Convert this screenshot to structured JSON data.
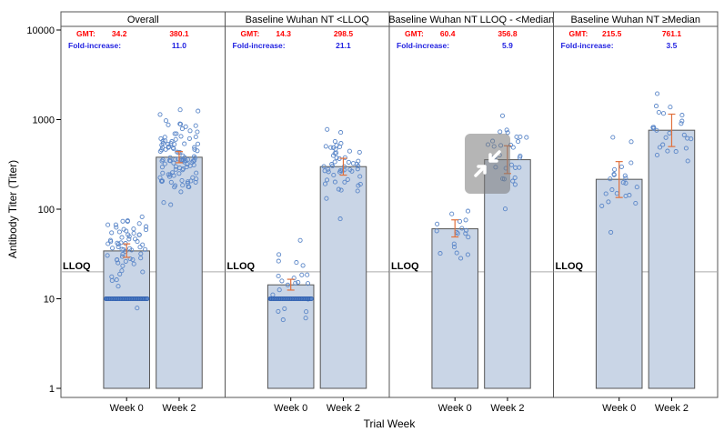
{
  "chart_data": {
    "type": "bar",
    "ylabel": "Antibody Titer (Titer)",
    "xlabel": "Trial Week",
    "yscale": "log",
    "ylim": [
      1,
      10000
    ],
    "yticks": [
      "1",
      "10",
      "100",
      "1000",
      "10000"
    ],
    "categories": [
      "Week 0",
      "Week 2"
    ],
    "lloq": {
      "label": "LLOQ",
      "value": 20
    },
    "labels": {
      "gmt": "GMT:",
      "fold": "Fold-increase:"
    },
    "colors": {
      "bar": "#c9d5e6",
      "bar_edge": "#555555",
      "point": "#5a86c8",
      "err": "#e0703c",
      "gmt": "#ff0000",
      "fold": "#1f1fe0"
    },
    "panels": [
      {
        "title": "Overall",
        "gmt": [
          "34.2",
          "380.1"
        ],
        "fold": "11.0",
        "values": [
          34.2,
          380.1
        ],
        "ci": [
          [
            29,
            41
          ],
          [
            330,
            440
          ]
        ],
        "week0_lloq_cluster": true
      },
      {
        "title": "Baseline Wuhan NT <LLOQ",
        "gmt": [
          "14.3",
          "298.5"
        ],
        "fold": "21.1",
        "values": [
          14.3,
          298.5
        ],
        "ci": [
          [
            12.5,
            16.5
          ],
          [
            240,
            370
          ]
        ],
        "week0_lloq_cluster": true
      },
      {
        "title": "Baseline Wuhan NT LLOQ - <Median",
        "gmt": [
          "60.4",
          "356.8"
        ],
        "fold": "5.9",
        "values": [
          60.4,
          356.8
        ],
        "ci": [
          [
            49,
            76
          ],
          [
            250,
            510
          ]
        ],
        "week0_lloq_cluster": false
      },
      {
        "title": "Baseline Wuhan NT ≥Median",
        "gmt": [
          "215.5",
          "761.1"
        ],
        "fold": "3.5",
        "values": [
          215.5,
          761.1
        ],
        "ci": [
          [
            135,
            340
          ],
          [
            500,
            1150
          ]
        ],
        "week0_lloq_cluster": false
      }
    ]
  }
}
